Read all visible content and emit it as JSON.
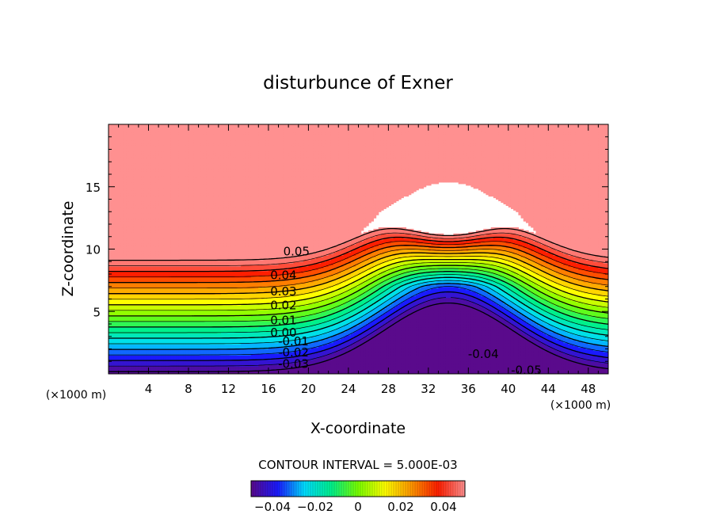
{
  "chart_data": {
    "type": "contour",
    "title": "disturbunce of Exner",
    "xlabel": "X-coordinate",
    "ylabel": "Z-coordinate",
    "x_unit": "(×1000 m)",
    "x_unit_right": "(×1000 m)",
    "xlim": [
      0,
      50
    ],
    "ylim": [
      0,
      20
    ],
    "xticks": [
      4,
      8,
      12,
      16,
      20,
      24,
      28,
      32,
      36,
      40,
      44,
      48
    ],
    "yticks": [
      5,
      10,
      15
    ],
    "contour_interval_text": "CONTOUR INTERVAL = 5.000E-03",
    "contour_interval": 0.005,
    "value_range": [
      -0.05,
      0.05
    ],
    "colorbar": {
      "range": [
        -0.05,
        0.05
      ],
      "ticks": [
        -0.04,
        -0.02,
        0,
        0.02,
        0.04
      ],
      "tick_labels": [
        "−0.04",
        "−0.02",
        "0",
        "0.02",
        "0.04"
      ],
      "colors": [
        "#5a0a8c",
        "#1a1aff",
        "#00dcff",
        "#00f08c",
        "#78ff00",
        "#ffff00",
        "#ff9600",
        "#ff1e00",
        "#ff9090"
      ]
    },
    "contour_labels": [
      {
        "text": "0.05",
        "x": 18.8,
        "z": 9.8
      },
      {
        "text": "0.04",
        "x": 17.5,
        "z": 7.9
      },
      {
        "text": "0.03",
        "x": 17.5,
        "z": 6.6
      },
      {
        "text": "0.02",
        "x": 17.5,
        "z": 5.5
      },
      {
        "text": "0.01",
        "x": 17.5,
        "z": 4.3
      },
      {
        "text": "0.00",
        "x": 17.5,
        "z": 3.3
      },
      {
        "text": "-0.01",
        "x": 18.5,
        "z": 2.6
      },
      {
        "text": "-0.02",
        "x": 18.5,
        "z": 1.7
      },
      {
        "text": "-0.03",
        "x": 18.5,
        "z": 0.8
      },
      {
        "text": "-0.04",
        "x": 37.5,
        "z": 1.6
      },
      {
        "text": "-0.05",
        "x": 41.8,
        "z": 0.3
      }
    ]
  }
}
